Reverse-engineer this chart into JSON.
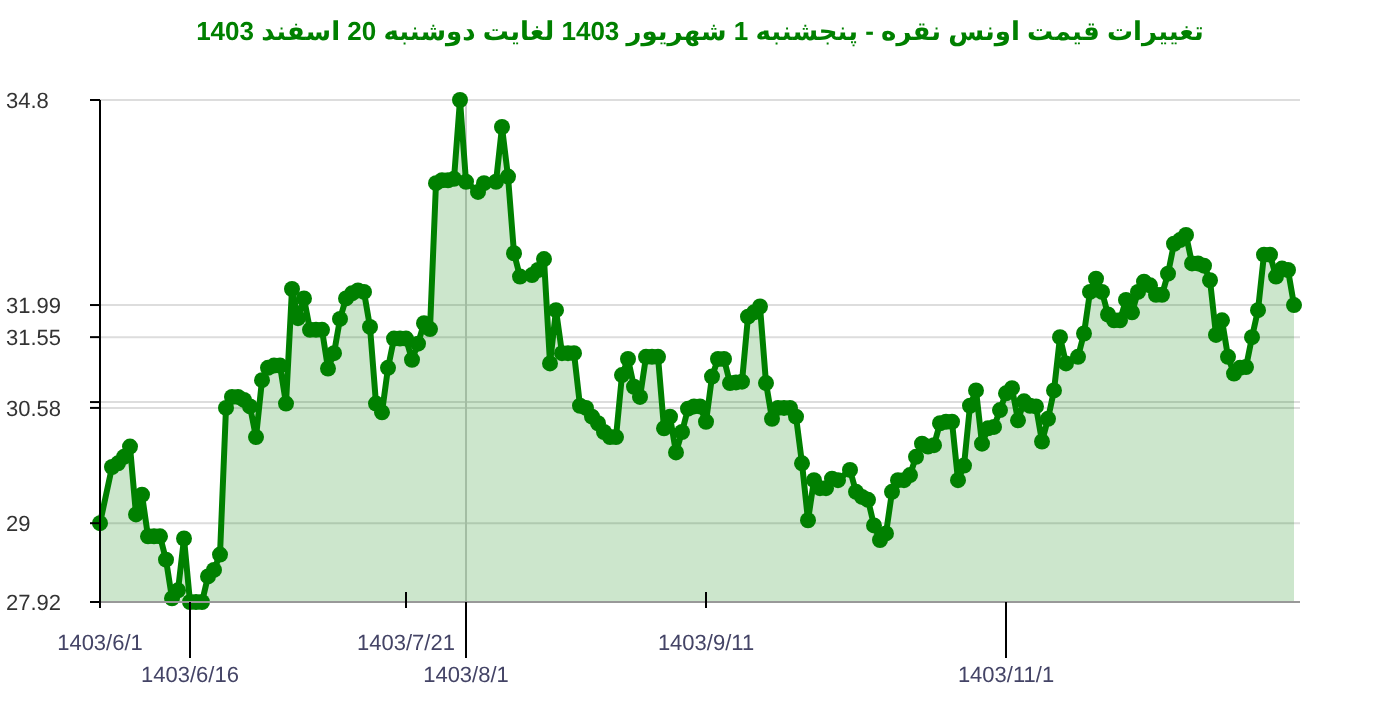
{
  "chart_data": {
    "type": "area",
    "title": "تغییرات قیمت اونس نقره - پنجشنبه  1 شهریور 1403 لغایت  دوشنبه  20 اسفند 1403",
    "categories": [
      "1403/6/1",
      null,
      null,
      null,
      null,
      null,
      null,
      null,
      null,
      null,
      null,
      null,
      null,
      null,
      null,
      "1403/6/16",
      null,
      null,
      null,
      null,
      null,
      null,
      null,
      null,
      null,
      null,
      null,
      null,
      null,
      null,
      null,
      null,
      null,
      null,
      null,
      null,
      null,
      null,
      null,
      null,
      null,
      null,
      null,
      null,
      null,
      null,
      null,
      null,
      null,
      null,
      null,
      "1403/7/21",
      null,
      null,
      null,
      null,
      null,
      null,
      null,
      null,
      null,
      "1403/8/1",
      null,
      null,
      null,
      null,
      null,
      null,
      null,
      null,
      null,
      null,
      null,
      null,
      null,
      null,
      null,
      null,
      null,
      null,
      null,
      null,
      null,
      null,
      null,
      null,
      null,
      null,
      null,
      null,
      null,
      null,
      null,
      null,
      null,
      null,
      null,
      null,
      null,
      null,
      null,
      "1403/9/11",
      null,
      null,
      null,
      null,
      null,
      null,
      null,
      null,
      null,
      null,
      null,
      null,
      null,
      null,
      null,
      null,
      null,
      null,
      null,
      null,
      null,
      null,
      null,
      null,
      null,
      null,
      null,
      null,
      null,
      null,
      null,
      null,
      null,
      null,
      null,
      null,
      null,
      null,
      null,
      null,
      null,
      null,
      null,
      null,
      null,
      null,
      null,
      null,
      null,
      "1403/11/1",
      null,
      null,
      null,
      null,
      null,
      null,
      null,
      null,
      null,
      null,
      null,
      null,
      null,
      null,
      null,
      null,
      null,
      null,
      null,
      null,
      null,
      null,
      null,
      null,
      null,
      null,
      null,
      null,
      null,
      null,
      null,
      null,
      null,
      null,
      null,
      null,
      null,
      null,
      null,
      null,
      null,
      null,
      null,
      null,
      null,
      null,
      null,
      null,
      null
    ],
    "ylim": [
      27.92,
      34.8
    ],
    "yticks": [
      27.92,
      29,
      30.58,
      {
        "value": 30.66,
        "label": null
      },
      31.55,
      31.99,
      34.8
    ],
    "grid": "y",
    "marker": "circle",
    "line_style": "solid",
    "ref_lines": [
      {
        "axis": "x",
        "value": "1403/8/1",
        "color": "#cccccc"
      }
    ],
    "series": [
      {
        "color": "#008000",
        "values": [
          29.0,
          null,
          29.77,
          29.82,
          29.91,
          30.05,
          29.12,
          29.39,
          28.82,
          28.82,
          28.82,
          28.5,
          27.97,
          28.08,
          28.79,
          27.92,
          27.92,
          27.92,
          28.27,
          28.36,
          28.57,
          30.58,
          30.73,
          30.73,
          30.69,
          30.6,
          30.18,
          30.96,
          31.13,
          31.16,
          31.16,
          30.64,
          32.21,
          31.81,
          32.08,
          31.65,
          31.65,
          31.65,
          31.12,
          31.33,
          31.8,
          32.08,
          32.15,
          32.19,
          32.17,
          31.69,
          30.64,
          30.52,
          31.13,
          31.53,
          31.53,
          31.53,
          31.24,
          31.46,
          31.74,
          31.66,
          33.66,
          33.7,
          33.7,
          33.72,
          34.8,
          33.68,
          null,
          33.54,
          33.66,
          null,
          33.68,
          34.43,
          33.75,
          32.7,
          32.38,
          null,
          32.4,
          32.47,
          32.62,
          31.19,
          31.92,
          31.33,
          31.33,
          31.33,
          30.61,
          30.58,
          30.46,
          30.37,
          30.25,
          30.18,
          30.18,
          31.03,
          31.25,
          30.87,
          30.73,
          31.28,
          31.28,
          31.28,
          30.3,
          30.46,
          29.97,
          30.25,
          30.57,
          30.6,
          30.6,
          30.39,
          31.01,
          31.25,
          31.25,
          30.92,
          30.93,
          30.94,
          31.83,
          31.89,
          31.97,
          30.92,
          30.43,
          30.58,
          30.58,
          30.58,
          30.46,
          29.82,
          29.04,
          29.59,
          29.48,
          29.48,
          29.61,
          29.59,
          null,
          29.73,
          29.43,
          29.36,
          29.32,
          28.97,
          28.77,
          28.86,
          29.43,
          29.59,
          29.59,
          29.66,
          29.91,
          30.09,
          30.05,
          30.07,
          30.37,
          30.39,
          30.39,
          29.59,
          29.79,
          30.61,
          30.82,
          30.09,
          30.3,
          30.32,
          30.55,
          30.78,
          30.85,
          30.41,
          30.67,
          30.61,
          30.6,
          30.12,
          30.43,
          30.82,
          31.55,
          31.19,
          null,
          31.28,
          31.6,
          32.17,
          32.35,
          32.17,
          31.86,
          31.78,
          31.78,
          32.06,
          31.89,
          32.17,
          32.31,
          32.26,
          32.13,
          32.13,
          32.42,
          32.83,
          32.88,
          32.95,
          32.56,
          32.56,
          32.53,
          32.33,
          31.58,
          31.78,
          31.28,
          31.05,
          31.13,
          31.14,
          31.55,
          31.92,
          32.68,
          32.68,
          32.38,
          32.49,
          32.47,
          31.99,
          null
        ]
      }
    ]
  }
}
